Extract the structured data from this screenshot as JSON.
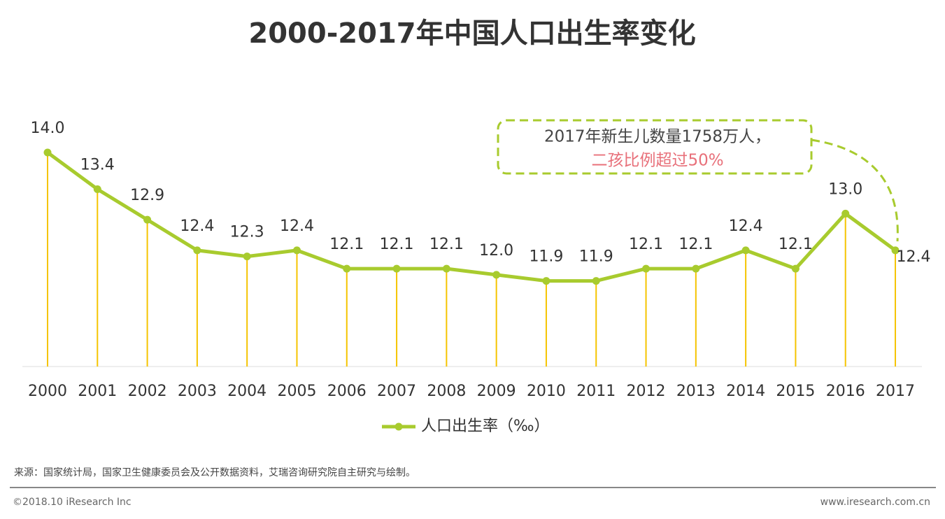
{
  "chart_data": {
    "type": "line",
    "title": "2000-2017年中国人口出生率变化",
    "categories": [
      "2000",
      "2001",
      "2002",
      "2003",
      "2004",
      "2005",
      "2006",
      "2007",
      "2008",
      "2009",
      "2010",
      "2011",
      "2012",
      "2013",
      "2014",
      "2015",
      "2016",
      "2017"
    ],
    "series": [
      {
        "name": "人口出生率（‰）",
        "color": "#a8cb2e",
        "values": [
          14.0,
          13.4,
          12.9,
          12.4,
          12.3,
          12.4,
          12.1,
          12.1,
          12.1,
          12.0,
          11.9,
          11.9,
          12.1,
          12.1,
          12.4,
          12.1,
          13.0,
          12.4
        ],
        "value_labels": [
          "14.0",
          "13.4",
          "12.9",
          "12.4",
          "12.3",
          "12.4",
          "12.1",
          "12.1",
          "12.1",
          "12.0",
          "11.9",
          "11.9",
          "12.1",
          "12.1",
          "12.4",
          "12.1",
          "13.0",
          "12.4"
        ]
      }
    ],
    "drop_line_color": "#f5c400",
    "ylim": [
      10.5,
      14.0
    ],
    "annotation": {
      "line1": "2017年新生儿数量1758万人，",
      "line2": "二孩比例超过50%"
    },
    "source": "来源：国家统计局，国家卫生健康委员会及公开数据资料，艾瑞咨询研究院自主研究与绘制。",
    "copyright": "©2018.10 iResearch Inc",
    "website": "www.iresearch.com.cn"
  }
}
